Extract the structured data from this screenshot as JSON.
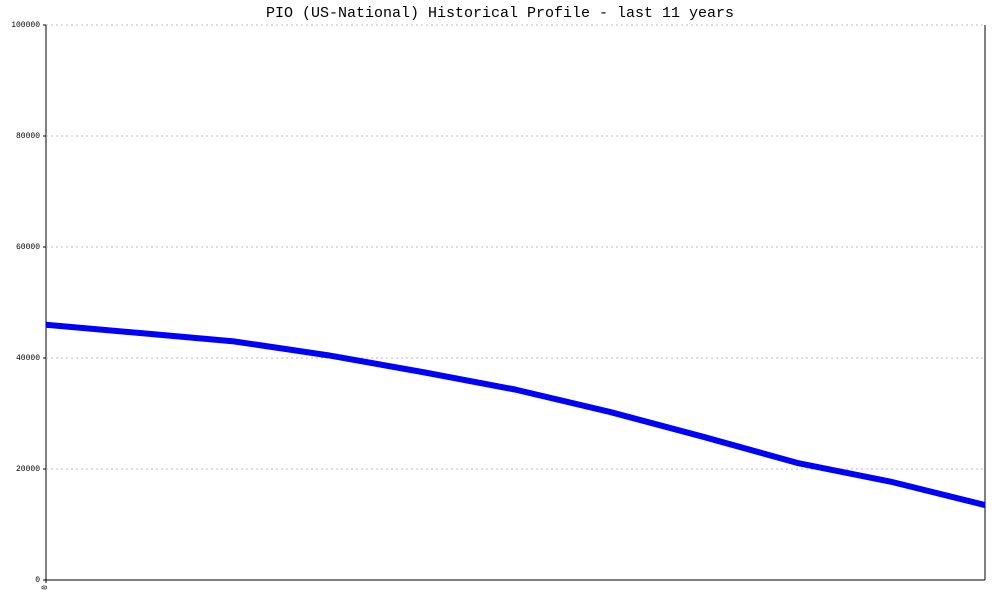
{
  "chart_data": {
    "type": "line",
    "title": "PIO (US-National) Historical Profile - last 11 years",
    "x": [
      0,
      1,
      2,
      3,
      4,
      5,
      6,
      7,
      8,
      9,
      10
    ],
    "series": [
      {
        "color": "#0000ff",
        "values": [
          46000,
          44500,
          43000,
          40500,
          37500,
          34300,
          30300,
          25800,
          21100,
          17700,
          13500
        ]
      }
    ],
    "xlim": [
      0,
      10
    ],
    "xticks": [
      0
    ],
    "ylim": [
      0,
      100000
    ],
    "yticks": [
      0,
      20000,
      40000,
      60000,
      80000,
      100000
    ],
    "grid": true
  }
}
